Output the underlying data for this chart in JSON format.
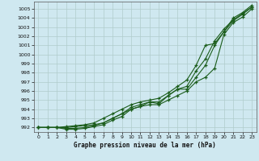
{
  "title": "Graphe pression niveau de la mer (hPa)",
  "bg_color": "#cfe8f0",
  "grid_color": "#b0cccc",
  "line_color": "#1a5c1a",
  "xlim": [
    -0.5,
    23.5
  ],
  "ylim": [
    991.5,
    1005.8
  ],
  "yticks": [
    992,
    993,
    994,
    995,
    996,
    997,
    998,
    999,
    1000,
    1001,
    1002,
    1003,
    1004,
    1005
  ],
  "xticks": [
    0,
    1,
    2,
    3,
    4,
    5,
    6,
    7,
    8,
    9,
    10,
    11,
    12,
    13,
    14,
    15,
    16,
    17,
    18,
    19,
    20,
    21,
    22,
    23
  ],
  "series": [
    [
      992.0,
      992.0,
      992.0,
      992.0,
      992.1,
      992.2,
      992.3,
      992.5,
      993.0,
      993.5,
      994.0,
      994.3,
      994.5,
      994.5,
      995.0,
      995.5,
      996.0,
      997.0,
      997.5,
      998.5,
      1002.2,
      1003.5,
      1004.1,
      1005.0
    ],
    [
      992.0,
      992.0,
      992.0,
      992.1,
      992.2,
      992.3,
      992.5,
      993.0,
      993.5,
      994.0,
      994.5,
      994.8,
      995.0,
      995.2,
      995.8,
      996.5,
      997.2,
      998.8,
      1001.0,
      1001.2,
      1002.5,
      1003.7,
      1004.4,
      1005.2
    ],
    [
      992.0,
      992.0,
      992.0,
      991.9,
      991.9,
      992.0,
      992.2,
      992.5,
      993.0,
      993.5,
      994.2,
      994.5,
      994.8,
      994.8,
      995.5,
      996.2,
      996.5,
      998.2,
      999.5,
      1001.5,
      1002.8,
      1003.8,
      1004.5,
      1005.2
    ],
    [
      992.0,
      992.0,
      992.0,
      991.8,
      991.8,
      991.9,
      992.1,
      992.3,
      992.8,
      993.2,
      994.0,
      994.3,
      994.8,
      994.6,
      995.5,
      996.2,
      996.2,
      997.5,
      998.8,
      1001.0,
      1002.5,
      1004.0,
      1004.6,
      1005.4
    ]
  ]
}
